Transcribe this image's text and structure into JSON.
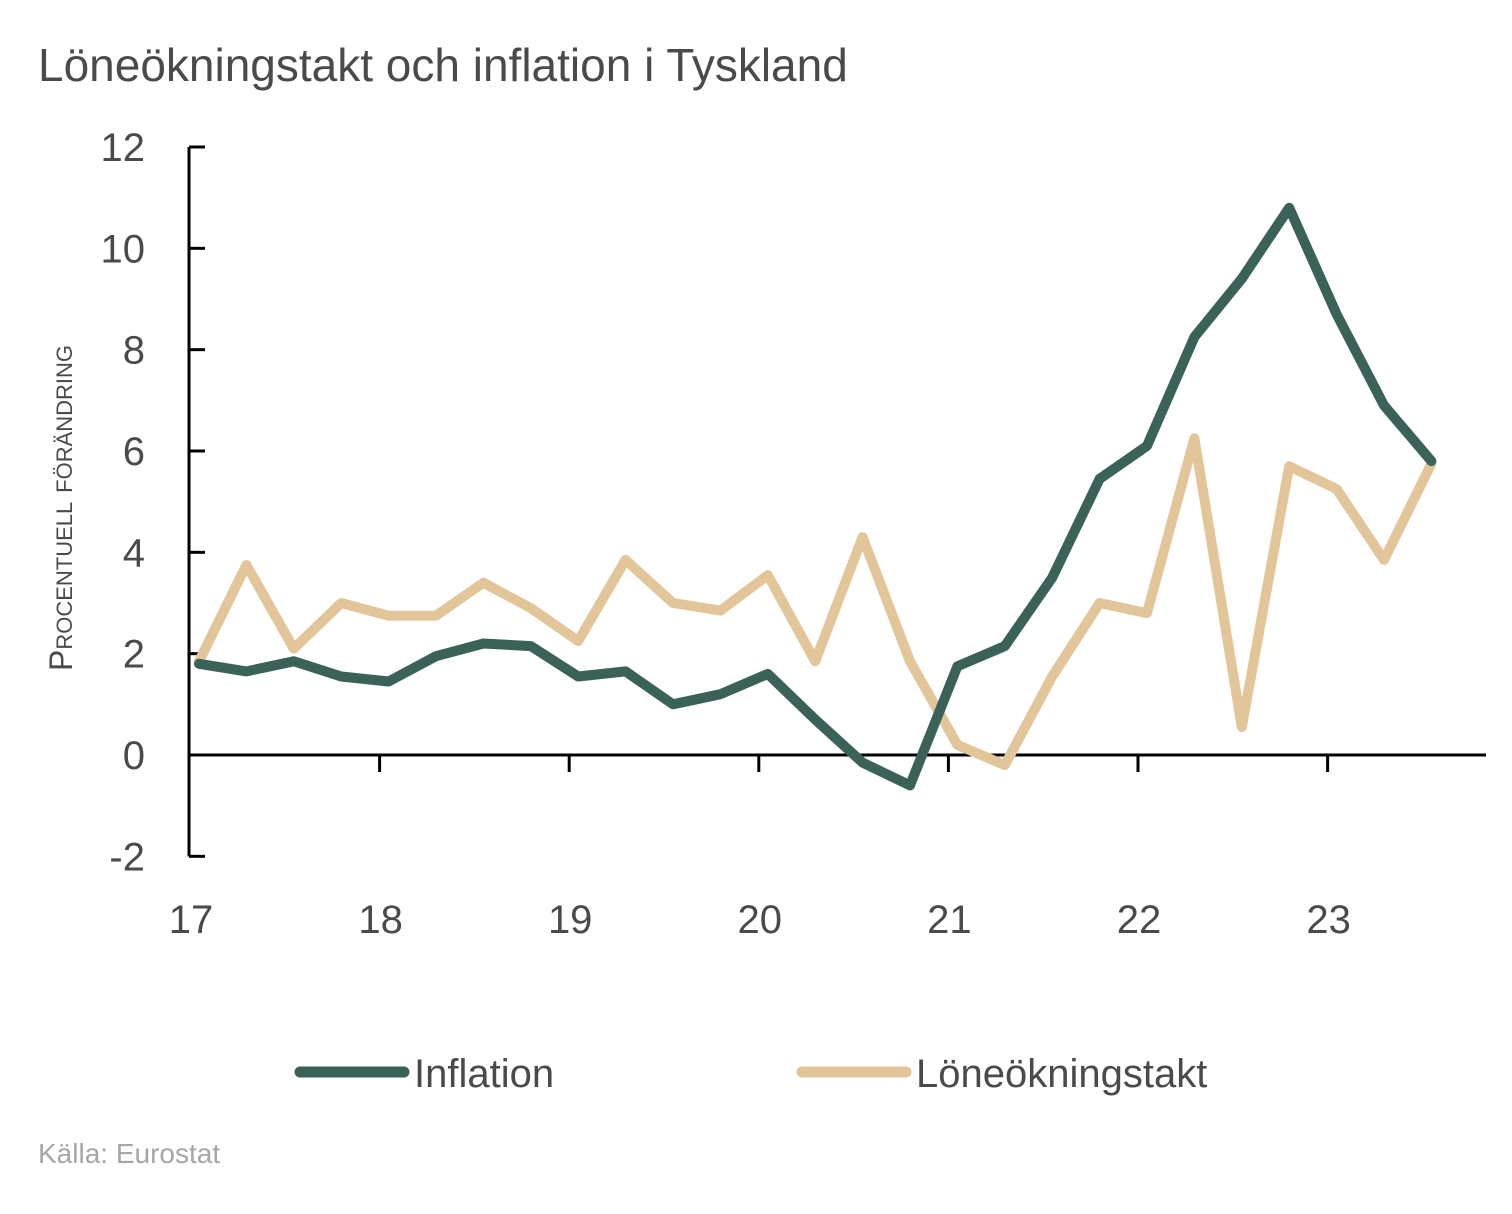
{
  "chart_data": {
    "type": "line",
    "title": "Löneökningstakt och inflation i Tyskland",
    "ylabel": "Procentuell förändring",
    "xlabel": "",
    "ylim": [
      -2,
      12
    ],
    "yticks": [
      "12",
      "10",
      "8",
      "6",
      "4",
      "2",
      "0",
      "-2"
    ],
    "ytick_values": [
      12,
      10,
      8,
      6,
      4,
      2,
      0,
      -2
    ],
    "xtick_labels": [
      "17",
      "18",
      "19",
      "20",
      "21",
      "22",
      "23"
    ],
    "x": [
      "2017Q1",
      "2017Q2",
      "2017Q3",
      "2017Q4",
      "2018Q1",
      "2018Q2",
      "2018Q3",
      "2018Q4",
      "2019Q1",
      "2019Q2",
      "2019Q3",
      "2019Q4",
      "2020Q1",
      "2020Q2",
      "2020Q3",
      "2020Q4",
      "2021Q1",
      "2021Q2",
      "2021Q3",
      "2021Q4",
      "2022Q1",
      "2022Q2",
      "2022Q3",
      "2022Q4",
      "2023Q1",
      "2023Q2",
      "2023Q3"
    ],
    "grid": false,
    "legend_position": "bottom",
    "series": [
      {
        "name": "Inflation",
        "color": "#3b6259",
        "values": [
          1.8,
          1.65,
          1.85,
          1.55,
          1.45,
          1.95,
          2.2,
          2.15,
          1.55,
          1.65,
          1.0,
          1.2,
          1.6,
          0.7,
          -0.15,
          -0.6,
          1.75,
          2.15,
          3.5,
          5.45,
          6.1,
          8.25,
          9.4,
          10.8,
          8.7,
          6.9,
          5.8
        ]
      },
      {
        "name": "Löneökningstakt",
        "color": "#e2c69a",
        "values": [
          1.85,
          3.75,
          2.1,
          3.0,
          2.75,
          2.75,
          3.4,
          2.9,
          2.25,
          3.85,
          3.0,
          2.85,
          3.55,
          1.85,
          4.3,
          1.85,
          0.2,
          -0.2,
          1.55,
          3.0,
          2.8,
          6.25,
          0.55,
          5.7,
          5.25,
          3.85,
          5.75
        ]
      }
    ],
    "source": "Källa: Eurostat"
  }
}
